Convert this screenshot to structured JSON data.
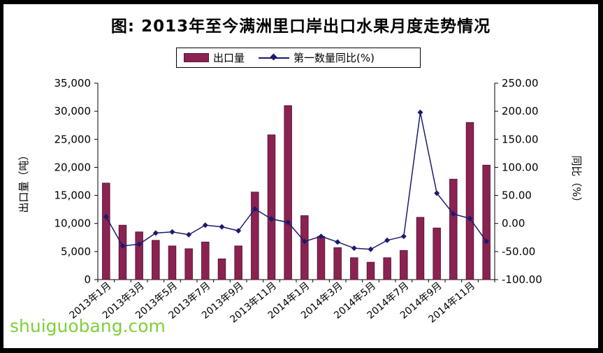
{
  "title": "图:  2013年至今满洲里口岸出口水果月度走势情况",
  "legend": {
    "bar_label": "出口量",
    "line_label": "第一数量同比(%)"
  },
  "watermark": "shuiguobang.com",
  "colors": {
    "bar": "#8B2252",
    "line": "#1a1a6e"
  },
  "chart_data": {
    "type": "bar",
    "title": "图:  2013年至今满洲里口岸出口水果月度走势情况",
    "categories": [
      "2013年1月",
      "2013年2月",
      "2013年3月",
      "2013年4月",
      "2013年5月",
      "2013年6月",
      "2013年7月",
      "2013年8月",
      "2013年9月",
      "2013年10月",
      "2013年11月",
      "2013年12月",
      "2014年1月",
      "2014年2月",
      "2014年3月",
      "2014年4月",
      "2014年5月",
      "2014年6月",
      "2014年7月",
      "2014年8月",
      "2014年9月",
      "2014年10月",
      "2014年11月",
      "2014年12月"
    ],
    "x_tick_labels": [
      "2013年1月",
      "2013年3月",
      "2013年5月",
      "2013年7月",
      "2013年9月",
      "2013年11月",
      "2014年1月",
      "2014年3月",
      "2014年5月",
      "2014年7月",
      "2014年9月",
      "2014年11月"
    ],
    "series": [
      {
        "name": "出口量",
        "axis": "left",
        "type": "bar",
        "values": [
          17200,
          9700,
          8500,
          7000,
          6000,
          5500,
          6700,
          3700,
          6000,
          15600,
          25800,
          31000,
          11400,
          7700,
          5700,
          3900,
          3100,
          3900,
          5200,
          11100,
          9200,
          17900,
          28000,
          20400
        ]
      },
      {
        "name": "第一数量同比(%)",
        "axis": "right",
        "type": "line",
        "values": [
          12,
          -40,
          -37,
          -17,
          -15,
          -20,
          -3,
          -6,
          -13,
          26,
          8,
          2,
          -32,
          -23,
          -33,
          -44,
          -46,
          -30,
          -23,
          198,
          54,
          17,
          9,
          -32
        ]
      }
    ],
    "ylabel": "出口量（吨）",
    "ylabel_right": "同比（%）",
    "ylim": [
      0,
      35000
    ],
    "ylim_right": [
      -100,
      250
    ],
    "y_ticks": [
      "0",
      "5,000",
      "10,000",
      "15,000",
      "20,000",
      "25,000",
      "30,000",
      "35,000"
    ],
    "y_ticks_right": [
      "-100.00",
      "-50.00",
      "0.00",
      "50.00",
      "100.00",
      "150.00",
      "200.00",
      "250.00"
    ],
    "grid": false,
    "legend_position": "top-center"
  }
}
